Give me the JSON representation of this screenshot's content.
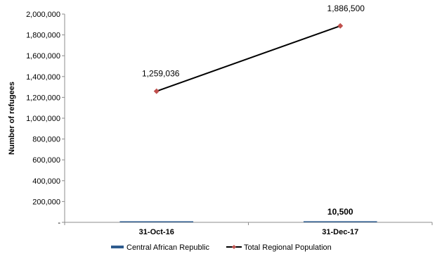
{
  "chart_data": {
    "type": "bar",
    "categories": [
      "31-Oct-16",
      "31-Dec-17"
    ],
    "ylabel": "Number of refugees",
    "ylim": [
      0,
      2000000
    ],
    "yticks": [
      0,
      200000,
      400000,
      600000,
      800000,
      1000000,
      1200000,
      1400000,
      1600000,
      1800000,
      2000000
    ],
    "ytick_labels": [
      "-",
      "200,000",
      "400,000",
      "600,000",
      "800,000",
      "1,000,000",
      "1,200,000",
      "1,400,000",
      "1,600,000",
      "1,800,000",
      "2,000,000"
    ],
    "grid": false,
    "legend_position": "bottom",
    "series": [
      {
        "name": "Central African Republic",
        "kind": "bar",
        "color": "#2E5B8E",
        "values": [
          0,
          10500
        ],
        "data_labels": [
          "",
          "10,500"
        ]
      },
      {
        "name": "Total Regional Population",
        "kind": "line",
        "color": "#000000",
        "marker_color": "#C0504D",
        "values": [
          1259036,
          1886500
        ],
        "data_labels": [
          "1,259,036",
          "1,886,500"
        ]
      }
    ]
  }
}
